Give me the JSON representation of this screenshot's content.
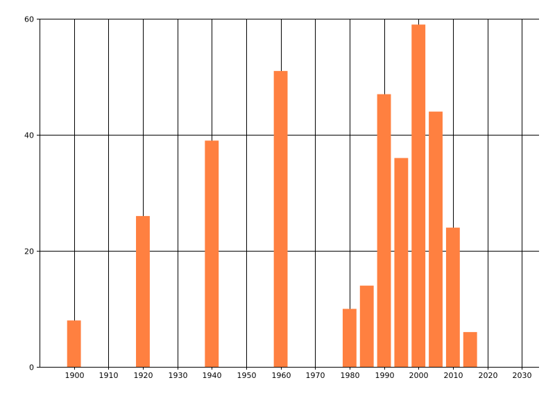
{
  "chart_data": {
    "type": "bar",
    "title": "",
    "xlabel": "",
    "ylabel": "",
    "x": [
      1900,
      1920,
      1940,
      1960,
      1980,
      1985,
      1990,
      1995,
      2000,
      2005,
      2010,
      2015
    ],
    "values": [
      8,
      26,
      39,
      51,
      10,
      14,
      47,
      36,
      59,
      44,
      24,
      6
    ],
    "xlim": [
      1890,
      2035
    ],
    "ylim": [
      0,
      60
    ],
    "x_ticks": [
      1900,
      1910,
      1920,
      1930,
      1940,
      1950,
      1960,
      1970,
      1980,
      1990,
      2000,
      2010,
      2020,
      2030
    ],
    "x_tick_labels": [
      "1900",
      "1910",
      "1920",
      "1930",
      "1940",
      "1950",
      "1960",
      "1970",
      "1980",
      "1990",
      "2000",
      "2010",
      "2020",
      "2030"
    ],
    "y_ticks": [
      0,
      20,
      40,
      60
    ],
    "y_tick_labels": [
      "0",
      "20",
      "40",
      "60"
    ],
    "grid": true,
    "legend": "none",
    "colors": {
      "bar": "#FF8040",
      "grid": "#000000",
      "background": "#FFFFFF"
    }
  }
}
